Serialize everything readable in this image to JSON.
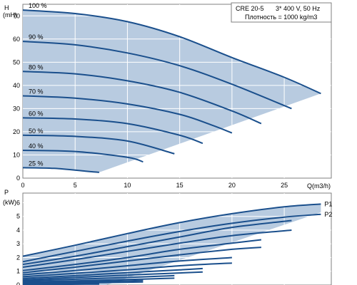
{
  "colors": {
    "curve": "#1a4f8c",
    "band_fill": "#b8cbe0",
    "grid": "#ffffff",
    "plot_border": "#7f7f7f",
    "text": "#000000"
  },
  "info_box": {
    "model": "CRE 20-5",
    "supply": "3* 400 V, 50 Hz",
    "density": "Плотность = 1000 kg/m3"
  },
  "chart_data": [
    {
      "type": "line",
      "panel": "head",
      "ylabel_symbol": "H",
      "ylabel_unit": "(mH)",
      "xlim": [
        0,
        29.5
      ],
      "ylim": [
        0,
        75
      ],
      "x_ticks": [
        "0",
        "5",
        "10",
        "15",
        "20",
        "25"
      ],
      "y_ticks": [
        "0",
        "10",
        "20",
        "30",
        "40",
        "50",
        "60",
        "70"
      ],
      "grid": true,
      "series": [
        {
          "name": "100 %",
          "x": [
            0,
            5,
            10,
            15,
            20,
            25,
            28.5
          ],
          "y": [
            72.5,
            71,
            67.5,
            61,
            52,
            43.5,
            36.5
          ]
        },
        {
          "name": "90 %",
          "x": [
            0,
            5,
            10,
            15,
            20,
            25.7
          ],
          "y": [
            59,
            57.5,
            54,
            48.5,
            40.5,
            30
          ]
        },
        {
          "name": "80 %",
          "x": [
            0,
            5,
            10,
            15,
            20,
            22.8
          ],
          "y": [
            46,
            45,
            42,
            37,
            29,
            23.5
          ]
        },
        {
          "name": "70 %",
          "x": [
            0,
            5,
            10,
            15,
            18,
            20
          ],
          "y": [
            35.5,
            34.5,
            32,
            27.5,
            23,
            19.5
          ]
        },
        {
          "name": "60 %",
          "x": [
            0,
            5,
            10,
            15,
            17.2
          ],
          "y": [
            26,
            25.5,
            23.5,
            18.5,
            15
          ]
        },
        {
          "name": "50 %",
          "x": [
            0,
            5,
            10,
            14.5
          ],
          "y": [
            18.5,
            18,
            16,
            10.5
          ]
        },
        {
          "name": "40 %",
          "x": [
            0,
            5,
            10,
            11.5
          ],
          "y": [
            12,
            11.5,
            9,
            7
          ]
        },
        {
          "name": "25 %",
          "x": [
            0,
            3,
            6,
            7.3
          ],
          "y": [
            4.5,
            4.2,
            3,
            2.5
          ]
        }
      ]
    },
    {
      "type": "line",
      "panel": "power",
      "ylabel_symbol": "P",
      "ylabel_unit": "(kW)",
      "xlabel": "Q(m3/h)",
      "xlim": [
        0,
        29.5
      ],
      "ylim": [
        0,
        6.7
      ],
      "y_ticks": [
        "0",
        "1",
        "2",
        "3",
        "4",
        "5",
        "6"
      ],
      "grid": true,
      "series": [
        {
          "name": "P1",
          "x": [
            0,
            5,
            10,
            15,
            20,
            25,
            28.5
          ],
          "y": [
            2.1,
            2.9,
            3.75,
            4.55,
            5.2,
            5.7,
            5.9
          ]
        },
        {
          "name": "P2",
          "x": [
            0,
            5,
            10,
            15,
            20,
            25,
            28.5
          ],
          "y": [
            1.7,
            2.45,
            3.2,
            3.9,
            4.5,
            4.95,
            5.15
          ]
        },
        {
          "name": "",
          "x": [
            0,
            5,
            10,
            15,
            20,
            25.7
          ],
          "y": [
            1.5,
            2.1,
            2.8,
            3.5,
            4.2,
            4.7
          ]
        },
        {
          "name": "",
          "x": [
            0,
            5,
            10,
            15,
            20,
            25.7
          ],
          "y": [
            1.3,
            1.85,
            2.45,
            3.05,
            3.6,
            4.0
          ]
        },
        {
          "name": "",
          "x": [
            0,
            5,
            10,
            15,
            20,
            22.8
          ],
          "y": [
            1.05,
            1.5,
            2.0,
            2.6,
            3.05,
            3.3
          ]
        },
        {
          "name": "",
          "x": [
            0,
            5,
            10,
            15,
            20,
            22.8
          ],
          "y": [
            0.9,
            1.3,
            1.75,
            2.2,
            2.6,
            2.75
          ]
        },
        {
          "name": "",
          "x": [
            0,
            5,
            10,
            15,
            20
          ],
          "y": [
            0.75,
            1.05,
            1.4,
            1.75,
            2.0
          ]
        },
        {
          "name": "",
          "x": [
            0,
            5,
            10,
            15,
            20
          ],
          "y": [
            0.6,
            0.85,
            1.1,
            1.4,
            1.6
          ]
        },
        {
          "name": "",
          "x": [
            0,
            5,
            10,
            15,
            17.2
          ],
          "y": [
            0.48,
            0.68,
            0.9,
            1.1,
            1.2
          ]
        },
        {
          "name": "",
          "x": [
            0,
            5,
            10,
            15,
            17.2
          ],
          "y": [
            0.38,
            0.55,
            0.72,
            0.88,
            0.95
          ]
        },
        {
          "name": "",
          "x": [
            0,
            5,
            10,
            14.5
          ],
          "y": [
            0.3,
            0.42,
            0.55,
            0.68
          ]
        },
        {
          "name": "",
          "x": [
            0,
            5,
            10,
            14.5
          ],
          "y": [
            0.22,
            0.3,
            0.4,
            0.5
          ]
        },
        {
          "name": "",
          "x": [
            0,
            5,
            10,
            11.5
          ],
          "y": [
            0.15,
            0.22,
            0.3,
            0.33
          ]
        },
        {
          "name": "",
          "x": [
            0,
            5,
            10,
            11.5
          ],
          "y": [
            0.1,
            0.15,
            0.2,
            0.22
          ]
        },
        {
          "name": "",
          "x": [
            0,
            3,
            6,
            7.3
          ],
          "y": [
            0.05,
            0.07,
            0.09,
            0.1
          ]
        },
        {
          "name": "",
          "x": [
            0,
            3,
            6,
            7.3
          ],
          "y": [
            0.03,
            0.04,
            0.06,
            0.07
          ]
        }
      ]
    }
  ]
}
